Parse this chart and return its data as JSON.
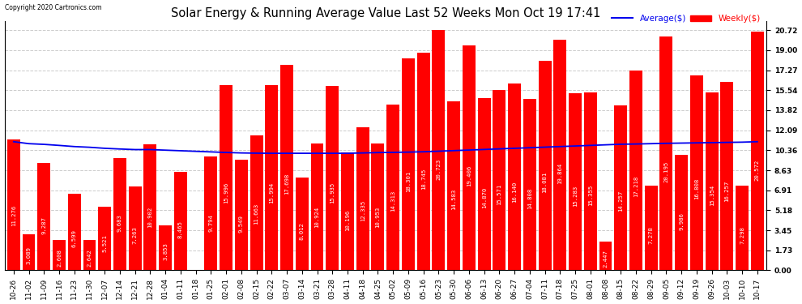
{
  "title": "Solar Energy & Running Average Value Last 52 Weeks Mon Oct 19 17:41",
  "copyright": "Copyright 2020 Cartronics.com",
  "legend_avg": "Average($)",
  "legend_weekly": "Weekly($)",
  "yticks": [
    0.0,
    1.73,
    3.45,
    5.18,
    6.91,
    8.63,
    10.36,
    12.09,
    13.82,
    15.54,
    17.27,
    19.0,
    20.72
  ],
  "categories": [
    "10-26",
    "11-02",
    "11-09",
    "11-16",
    "11-23",
    "11-30",
    "12-07",
    "12-14",
    "12-21",
    "12-28",
    "01-04",
    "01-11",
    "01-18",
    "01-25",
    "02-01",
    "02-08",
    "02-15",
    "02-22",
    "03-07",
    "03-14",
    "03-21",
    "03-28",
    "04-11",
    "04-18",
    "04-25",
    "05-02",
    "05-09",
    "05-16",
    "05-23",
    "05-30",
    "06-06",
    "06-13",
    "06-20",
    "06-27",
    "07-04",
    "07-11",
    "07-18",
    "07-25",
    "08-01",
    "08-08",
    "08-15",
    "08-22",
    "08-29",
    "09-05",
    "09-12",
    "09-19",
    "09-26",
    "10-03",
    "10-10",
    "10-17"
  ],
  "bar_values": [
    11.276,
    3.089,
    9.287,
    2.608,
    6.599,
    2.642,
    5.521,
    9.683,
    7.263,
    10.902,
    3.853,
    8.465,
    0.008,
    9.794,
    15.996,
    9.549,
    11.663,
    15.994,
    17.698,
    8.012,
    10.924,
    15.935,
    10.196,
    12.335,
    10.953,
    14.313,
    18.301,
    18.745,
    20.723,
    14.583,
    19.406,
    14.87,
    15.571,
    16.14,
    14.808,
    18.081,
    19.864,
    15.283,
    15.355,
    2.447,
    14.257,
    17.218,
    7.278,
    20.195,
    9.986,
    16.808,
    15.354,
    16.257,
    7.298,
    20.572
  ],
  "avg_values": [
    11.1,
    10.93,
    10.87,
    10.78,
    10.68,
    10.62,
    10.53,
    10.47,
    10.42,
    10.42,
    10.37,
    10.32,
    10.27,
    10.22,
    10.17,
    10.13,
    10.11,
    10.1,
    10.1,
    10.1,
    10.1,
    10.1,
    10.1,
    10.13,
    10.16,
    10.18,
    10.2,
    10.23,
    10.28,
    10.33,
    10.38,
    10.43,
    10.48,
    10.53,
    10.58,
    10.63,
    10.68,
    10.73,
    10.78,
    10.83,
    10.88,
    10.9,
    10.93,
    10.96,
    10.98,
    11.0,
    11.02,
    11.04,
    11.06,
    11.1
  ],
  "bar_color": "#ff0000",
  "avg_line_color": "#0000ee",
  "background_color": "#ffffff",
  "grid_color": "#cccccc",
  "title_fontsize": 10.5,
  "tick_fontsize": 6.5,
  "bar_label_fontsize": 5.2,
  "ymax": 21.5
}
